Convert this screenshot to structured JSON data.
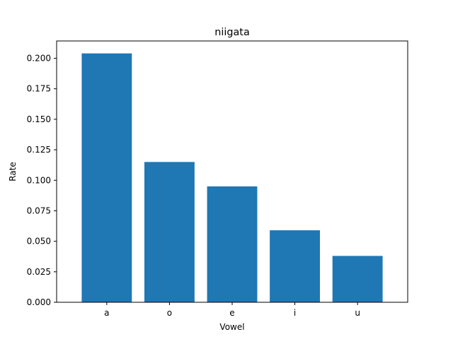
{
  "chart_data": {
    "type": "bar",
    "title": "niigata",
    "xlabel": "Vowel",
    "ylabel": "Rate",
    "categories": [
      "a",
      "o",
      "e",
      "i",
      "u"
    ],
    "values": [
      0.204,
      0.115,
      0.095,
      0.059,
      0.038
    ],
    "ylim": [
      0,
      0.2142
    ],
    "yticks": [
      "0.000",
      "0.025",
      "0.050",
      "0.075",
      "0.100",
      "0.125",
      "0.150",
      "0.175",
      "0.200"
    ],
    "bar_color": "#1f77b4",
    "grid": false,
    "legend": "none"
  }
}
